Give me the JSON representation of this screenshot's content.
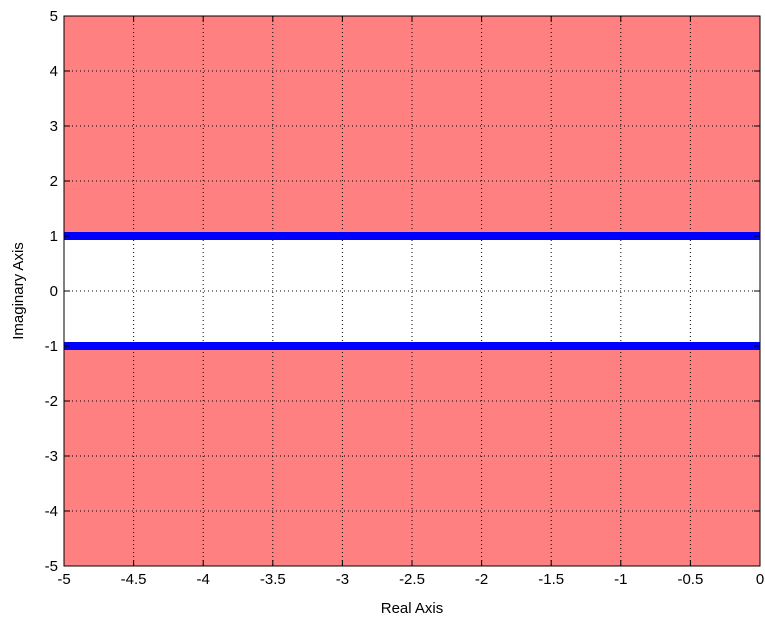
{
  "chart_data": {
    "type": "area",
    "xlabel": "Real Axis",
    "ylabel": "Imaginary Axis",
    "xlim": [
      -5,
      0
    ],
    "ylim": [
      -5,
      5
    ],
    "x_ticks": [
      -5,
      -4.5,
      -4,
      -3.5,
      -3,
      -2.5,
      -2,
      -1.5,
      -1,
      -0.5,
      0
    ],
    "x_tick_labels": [
      "-5",
      "-4.5",
      "-4",
      "-3.5",
      "-3",
      "-2.5",
      "-2",
      "-1.5",
      "-1",
      "-0.5",
      "0"
    ],
    "y_ticks": [
      5,
      4,
      3,
      2,
      1,
      0,
      -1,
      -2,
      -3,
      -4,
      -5
    ],
    "y_tick_labels": [
      "5",
      "4",
      "3",
      "2",
      "1",
      "0",
      "-1",
      "-2",
      "-3",
      "-4",
      "-5"
    ],
    "grid": true,
    "shaded_regions": [
      {
        "y_from": 1,
        "y_to": 5,
        "color": "#ff8080"
      },
      {
        "y_from": -5,
        "y_to": -1,
        "color": "#ff8080"
      }
    ],
    "boundary_lines": [
      {
        "y": 1,
        "color": "#0000ff"
      },
      {
        "y": -1,
        "color": "#0000ff"
      }
    ]
  }
}
